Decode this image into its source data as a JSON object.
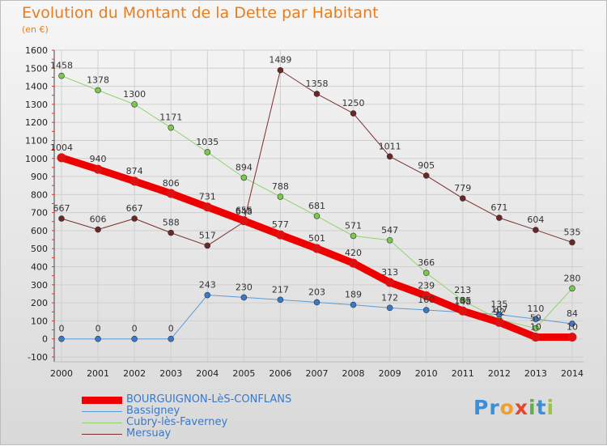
{
  "header": {
    "title": "Evolution du Montant de la Dette par Habitant",
    "unit": "(en €)"
  },
  "logo": {
    "text": "Proxiti",
    "letters": [
      {
        "ch": "P",
        "color": "#3a8fd8"
      },
      {
        "ch": "r",
        "color": "#3a8fd8"
      },
      {
        "ch": "o",
        "color": "#f0a02a"
      },
      {
        "ch": "x",
        "color": "#e8432b"
      },
      {
        "ch": "i",
        "color": "#5fb04a"
      },
      {
        "ch": "t",
        "color": "#3a8fd8"
      },
      {
        "ch": "i",
        "color": "#9bc43a"
      }
    ]
  },
  "chart_data": {
    "type": "line",
    "title": "Evolution du Montant de la Dette par Habitant",
    "ylabel": "(en €)",
    "xlabel": "",
    "ylim": [
      -100,
      1600
    ],
    "yticks": [
      -100,
      0,
      100,
      200,
      300,
      400,
      500,
      600,
      700,
      800,
      900,
      1000,
      1100,
      1200,
      1300,
      1400,
      1500,
      1600
    ],
    "categories": [
      "2000",
      "2001",
      "2002",
      "2003",
      "2004",
      "2005",
      "2006",
      "2007",
      "2008",
      "2009",
      "2010",
      "2011",
      "2012",
      "2013",
      "2014"
    ],
    "series": [
      {
        "name": "BOURGUIGNON-LèS-CONFLANS",
        "color": "#ee0000",
        "marker": "#dd1111",
        "width": 9,
        "values": [
          1004,
          940,
          874,
          806,
          731,
          655,
          577,
          501,
          420,
          313,
          239,
          155,
          92,
          10,
          10
        ],
        "labels": [
          "1004",
          "940",
          "874",
          "806",
          "731",
          "655",
          "577",
          "501",
          "420",
          "313",
          "239",
          "155",
          "92",
          "10",
          "10"
        ]
      },
      {
        "name": "Bassigney",
        "color": "#5b9bd5",
        "marker": "#3a78c9",
        "width": 1,
        "values": [
          0,
          0,
          0,
          0,
          243,
          230,
          217,
          203,
          189,
          172,
          160,
          148,
          135,
          110,
          84
        ],
        "labels": [
          "0",
          "0",
          "0",
          "0",
          "243",
          "230",
          "217",
          "203",
          "189",
          "172",
          "160",
          "148",
          "135",
          "110",
          "84"
        ]
      },
      {
        "name": "Cubry-lès-Faverney",
        "color": "#8fd36b",
        "marker": "#7ac94a",
        "width": 1,
        "values": [
          1458,
          1378,
          1300,
          1171,
          1035,
          894,
          788,
          681,
          571,
          547,
          366,
          213,
          107,
          59,
          280
        ],
        "labels": [
          "1458",
          "1378",
          "1300",
          "1171",
          "1035",
          "894",
          "788",
          "681",
          "571",
          "547",
          "366",
          "213",
          "107",
          "59",
          "280"
        ]
      },
      {
        "name": "Mersuay",
        "color": "#7a2e2e",
        "marker": "#6b2626",
        "width": 1,
        "values": [
          667,
          606,
          667,
          588,
          517,
          648,
          1489,
          1358,
          1250,
          1011,
          905,
          779,
          671,
          604,
          535
        ],
        "labels": [
          "667",
          "606",
          "667",
          "588",
          "517",
          "648",
          "1489",
          "1358",
          "1250",
          "1011",
          "905",
          "779",
          "671",
          "604",
          "535"
        ]
      }
    ]
  }
}
